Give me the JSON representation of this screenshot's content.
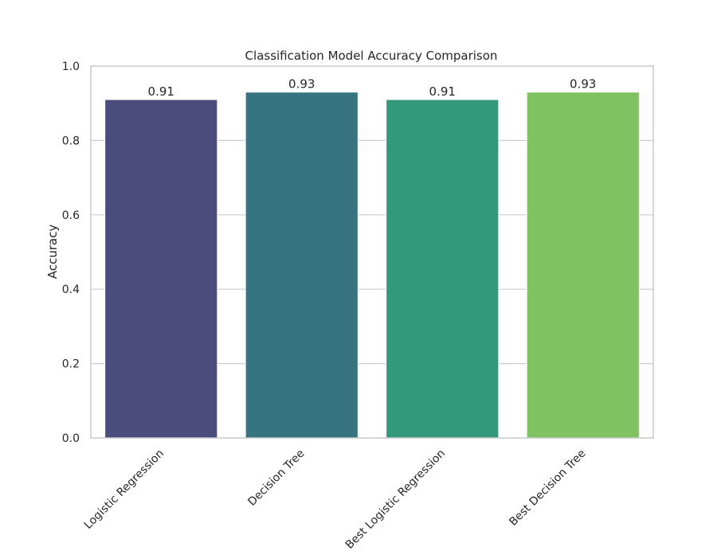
{
  "chart_data": {
    "type": "bar",
    "title": "Classification Model Accuracy Comparison",
    "xlabel": "",
    "ylabel": "Accuracy",
    "categories": [
      "Logistic Regression",
      "Decision Tree",
      "Best Logistic Regression",
      "Best Decision Tree"
    ],
    "values": [
      0.91,
      0.93,
      0.91,
      0.93
    ],
    "value_labels": [
      "0.91",
      "0.93",
      "0.91",
      "0.93"
    ],
    "colors": [
      "#4a4c7c",
      "#367580",
      "#34997b",
      "#7ec262"
    ],
    "ylim": [
      0,
      1.0
    ],
    "yticks": [
      0.0,
      0.2,
      0.4,
      0.6,
      0.8,
      1.0
    ],
    "ytick_labels": [
      "0.0",
      "0.2",
      "0.4",
      "0.6",
      "0.8",
      "1.0"
    ],
    "grid": "horizontal",
    "grid_color": "#cccccc",
    "text_color": "#262626",
    "frame_color": "#cccccc"
  }
}
